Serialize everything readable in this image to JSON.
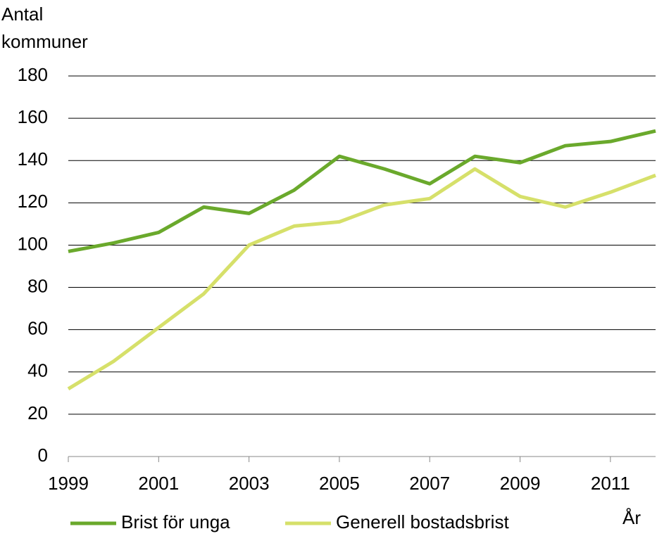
{
  "chart_data": {
    "type": "line",
    "ylabel": [
      "Antal",
      "kommuner"
    ],
    "xlabel": "År",
    "x": [
      1999,
      2000,
      2001,
      2002,
      2003,
      2004,
      2005,
      2006,
      2007,
      2008,
      2009,
      2010,
      2011,
      2012
    ],
    "series": [
      {
        "name": "Brist för unga",
        "color": "#6aa92c",
        "values": [
          97,
          101,
          106,
          118,
          115,
          126,
          142,
          136,
          129,
          142,
          139,
          147,
          149,
          154
        ]
      },
      {
        "name": "Generell bostadsbrist",
        "color": "#d6e06a",
        "values": [
          32,
          45,
          61,
          77,
          100,
          109,
          111,
          119,
          122,
          136,
          123,
          118,
          125,
          133
        ]
      }
    ],
    "xlim": [
      1999,
      2012
    ],
    "xticks": [
      1999,
      2001,
      2003,
      2005,
      2007,
      2009,
      2011
    ],
    "ylim": [
      0,
      180
    ],
    "yticks": [
      0,
      20,
      40,
      60,
      80,
      100,
      120,
      140,
      160,
      180
    ],
    "grid": true,
    "legend": "bottom"
  }
}
